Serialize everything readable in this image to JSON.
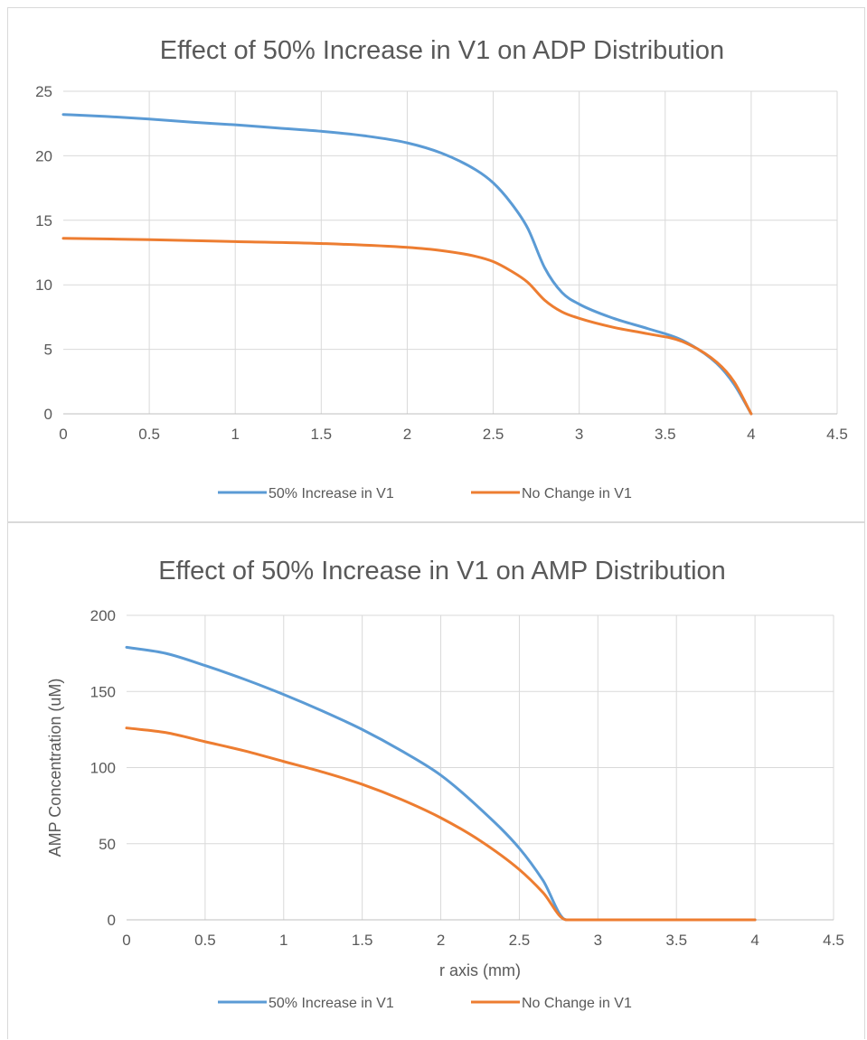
{
  "chart_data": [
    {
      "type": "line",
      "title": "Effect of 50% Increase in V1 on ADP Distribution",
      "xlabel": "",
      "ylabel": "",
      "xlim": [
        0,
        4.5
      ],
      "ylim": [
        0,
        25
      ],
      "xticks": [
        "0",
        "0.5",
        "1",
        "1.5",
        "2",
        "2.5",
        "3",
        "3.5",
        "4",
        "4.5"
      ],
      "yticks": [
        "0",
        "5",
        "10",
        "15",
        "20",
        "25"
      ],
      "grid": true,
      "legend_position": "bottom",
      "series": [
        {
          "name": "50% Increase in V1",
          "color": "#5b9bd5",
          "x": [
            0,
            0.25,
            0.5,
            0.75,
            1.0,
            1.25,
            1.5,
            1.75,
            2.0,
            2.2,
            2.4,
            2.5,
            2.6,
            2.7,
            2.8,
            2.9,
            3.0,
            3.2,
            3.4,
            3.6,
            3.8,
            3.9,
            4.0
          ],
          "y": [
            23.2,
            23.05,
            22.85,
            22.6,
            22.4,
            22.15,
            21.9,
            21.55,
            21.0,
            20.2,
            18.9,
            17.9,
            16.4,
            14.4,
            11.3,
            9.4,
            8.5,
            7.4,
            6.6,
            5.7,
            3.9,
            2.3,
            0
          ]
        },
        {
          "name": "No Change in V1",
          "color": "#ed7d31",
          "x": [
            0,
            0.5,
            1.0,
            1.5,
            2.0,
            2.2,
            2.4,
            2.5,
            2.6,
            2.7,
            2.8,
            2.9,
            3.0,
            3.2,
            3.4,
            3.6,
            3.8,
            3.9,
            4.0
          ],
          "y": [
            13.6,
            13.5,
            13.35,
            13.2,
            12.9,
            12.65,
            12.2,
            11.8,
            11.1,
            10.2,
            8.8,
            7.9,
            7.4,
            6.7,
            6.2,
            5.6,
            4.0,
            2.5,
            0
          ]
        }
      ]
    },
    {
      "type": "line",
      "title": "Effect of 50% Increase in V1 on AMP Distribution",
      "xlabel": "r axis (mm)",
      "ylabel": "AMP Concentration (uM)",
      "xlim": [
        0,
        4.5
      ],
      "ylim": [
        0,
        200
      ],
      "xticks": [
        "0",
        "0.5",
        "1",
        "1.5",
        "2",
        "2.5",
        "3",
        "3.5",
        "4",
        "4.5"
      ],
      "yticks": [
        "0",
        "50",
        "100",
        "150",
        "200"
      ],
      "grid": true,
      "legend_position": "bottom",
      "series": [
        {
          "name": "50% Increase in V1",
          "color": "#5b9bd5",
          "x": [
            0,
            0.25,
            0.5,
            0.75,
            1.0,
            1.25,
            1.5,
            1.75,
            2.0,
            2.25,
            2.5,
            2.65,
            2.8,
            3.0,
            3.5,
            4.0
          ],
          "y": [
            179,
            175,
            167,
            158,
            148,
            137,
            125,
            111,
            95,
            73,
            47,
            26,
            0,
            0,
            0,
            0
          ]
        },
        {
          "name": "No Change in V1",
          "color": "#ed7d31",
          "x": [
            0,
            0.25,
            0.5,
            0.75,
            1.0,
            1.25,
            1.5,
            1.75,
            2.0,
            2.25,
            2.5,
            2.65,
            2.8,
            3.0,
            3.5,
            4.0
          ],
          "y": [
            126,
            123,
            117,
            111,
            104,
            97,
            89,
            79,
            67,
            52,
            33,
            18,
            0,
            0,
            0,
            0
          ]
        }
      ]
    }
  ]
}
